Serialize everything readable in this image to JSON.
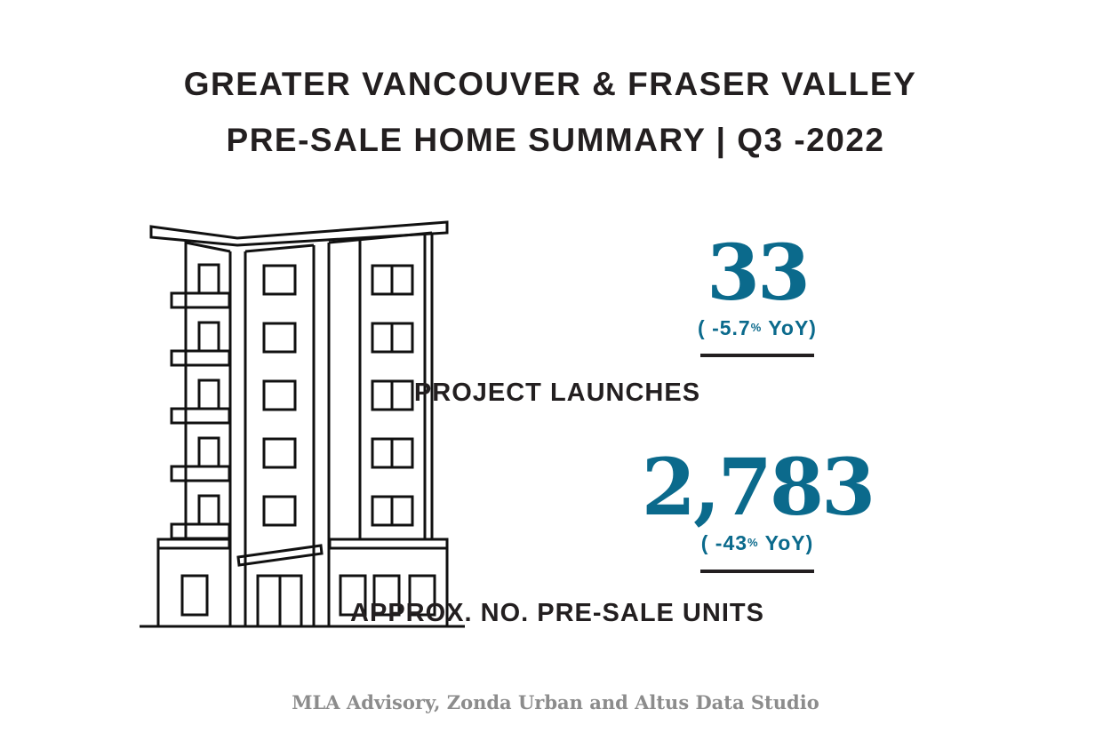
{
  "header": {
    "title_line1": "GREATER VANCOUVER & FRASER VALLEY",
    "title_line2": "PRE-SALE HOME SUMMARY | Q3 -2022"
  },
  "illustration": {
    "icon": "apartment-building-icon"
  },
  "stats": [
    {
      "value": "33",
      "yoy_prefix": "( -5.7",
      "yoy_pct": "%",
      "yoy_suffix": " YoY)",
      "label": "PROJECT LAUNCHES"
    },
    {
      "value": "2,783",
      "yoy_prefix": "( -43",
      "yoy_pct": "%",
      "yoy_suffix": " YoY)",
      "label": "APPROX. NO. PRE-SALE UNITS"
    }
  ],
  "footer": {
    "source": "MLA Advisory, Zonda Urban and Altus Data Studio"
  },
  "colors": {
    "accent": "#0b6a8c",
    "text": "#231f20",
    "footer": "#8c8c8c"
  }
}
